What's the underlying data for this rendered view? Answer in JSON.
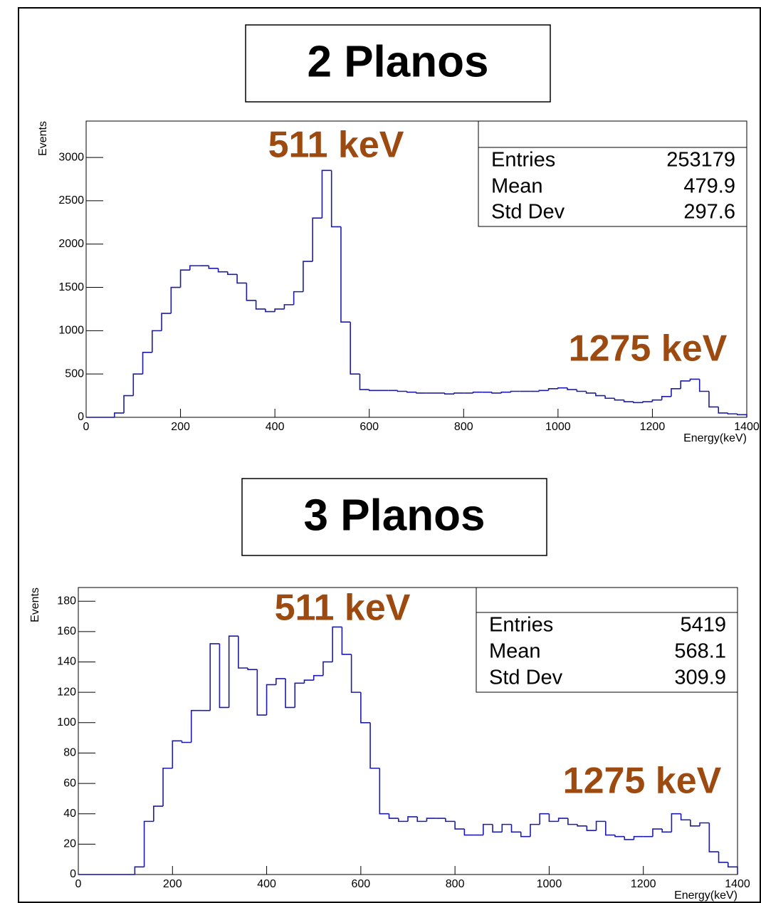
{
  "chart_data": [
    {
      "type": "histogram",
      "title": "2 Planos",
      "xlabel": "Energy(keV)",
      "ylabel": "Events",
      "color": "#1c1ca8",
      "xlim": [
        0,
        1400
      ],
      "xticks": [
        0,
        200,
        400,
        600,
        800,
        1000,
        1200,
        1400
      ],
      "ylim": [
        0,
        3420
      ],
      "yticks": [
        0,
        500,
        1000,
        1500,
        2000,
        2500,
        3000
      ],
      "bins": [
        0,
        20,
        40,
        60,
        80,
        100,
        120,
        140,
        160,
        180,
        200,
        220,
        240,
        260,
        280,
        300,
        320,
        340,
        360,
        380,
        400,
        420,
        440,
        460,
        480,
        500,
        520,
        540,
        560,
        580,
        600,
        620,
        640,
        660,
        680,
        700,
        720,
        740,
        760,
        780,
        800,
        820,
        840,
        860,
        880,
        900,
        920,
        940,
        960,
        980,
        1000,
        1020,
        1040,
        1060,
        1080,
        1100,
        1120,
        1140,
        1160,
        1180,
        1200,
        1220,
        1240,
        1260,
        1280,
        1300,
        1320,
        1340,
        1360,
        1380,
        1400
      ],
      "values": [
        0,
        0,
        0,
        50,
        250,
        500,
        750,
        1000,
        1200,
        1500,
        1700,
        1750,
        1750,
        1720,
        1680,
        1650,
        1550,
        1350,
        1250,
        1220,
        1250,
        1300,
        1450,
        1800,
        2300,
        2850,
        2200,
        1100,
        500,
        320,
        310,
        310,
        310,
        300,
        290,
        280,
        280,
        280,
        270,
        280,
        280,
        290,
        290,
        280,
        290,
        300,
        300,
        300,
        310,
        330,
        340,
        320,
        300,
        280,
        250,
        220,
        200,
        180,
        170,
        180,
        200,
        240,
        330,
        420,
        440,
        300,
        120,
        50,
        40,
        30
      ],
      "stats": {
        "labels": [
          "Entries",
          "Mean",
          "Std Dev"
        ],
        "values": [
          253179,
          479.9,
          297.6
        ]
      },
      "annotations": [
        "511 keV",
        "1275 keV"
      ]
    },
    {
      "type": "histogram",
      "title": "3 Planos",
      "xlabel": "Energy(keV)",
      "ylabel": "Events",
      "color": "#1c1ca8",
      "xlim": [
        0,
        1400
      ],
      "xticks": [
        0,
        200,
        400,
        600,
        800,
        1000,
        1200,
        1400
      ],
      "ylim": [
        0,
        189
      ],
      "yticks": [
        0,
        20,
        40,
        60,
        80,
        100,
        120,
        140,
        160,
        180
      ],
      "bins": [
        0,
        20,
        40,
        60,
        80,
        100,
        120,
        140,
        160,
        180,
        200,
        220,
        240,
        260,
        280,
        300,
        320,
        340,
        360,
        380,
        400,
        420,
        440,
        460,
        480,
        500,
        520,
        540,
        560,
        580,
        600,
        620,
        640,
        660,
        680,
        700,
        720,
        740,
        760,
        780,
        800,
        820,
        840,
        860,
        880,
        900,
        920,
        940,
        960,
        980,
        1000,
        1020,
        1040,
        1060,
        1080,
        1100,
        1120,
        1140,
        1160,
        1180,
        1200,
        1220,
        1240,
        1260,
        1280,
        1300,
        1320,
        1340,
        1360,
        1380,
        1400
      ],
      "values": [
        0,
        0,
        0,
        0,
        0,
        0,
        5,
        35,
        45,
        70,
        88,
        87,
        108,
        108,
        152,
        110,
        157,
        136,
        135,
        105,
        125,
        129,
        110,
        126,
        128,
        131,
        140,
        163,
        145,
        120,
        100,
        70,
        40,
        37,
        35,
        38,
        35,
        37,
        37,
        35,
        30,
        26,
        26,
        33,
        28,
        33,
        28,
        25,
        33,
        40,
        35,
        37,
        33,
        32,
        29,
        35,
        26,
        25,
        23,
        25,
        25,
        30,
        28,
        40,
        36,
        32,
        34,
        15,
        8,
        5
      ],
      "stats": {
        "labels": [
          "Entries",
          "Mean",
          "Std Dev"
        ],
        "values": [
          5419,
          568.1,
          309.9
        ]
      },
      "annotations": [
        "511 keV",
        "1275 keV"
      ]
    }
  ]
}
